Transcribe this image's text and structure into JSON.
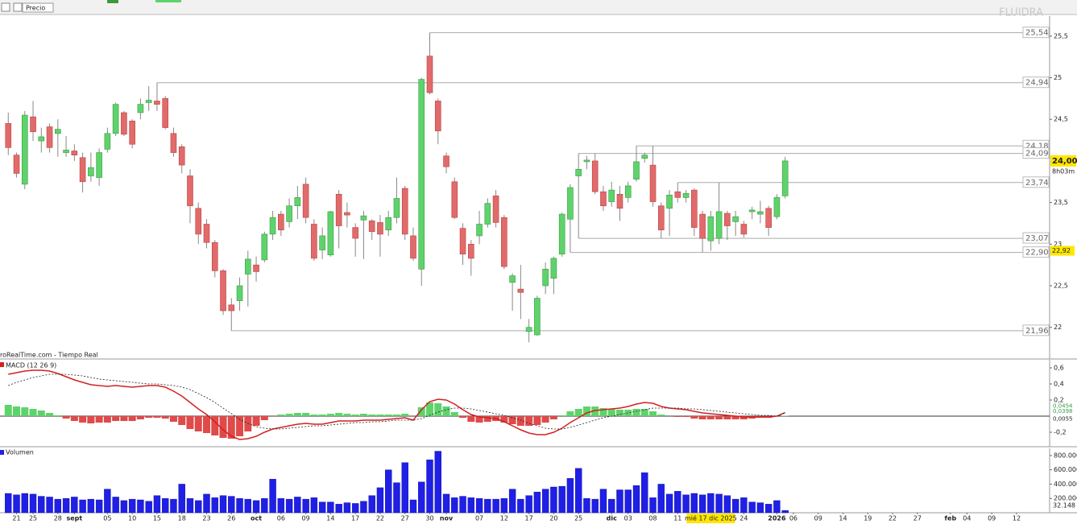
{
  "toolbar": {
    "tab": "Precio"
  },
  "chart_data": [
    {
      "type": "candlestick",
      "watermark": "FLUIDRA",
      "source": "roRealTime.com - Tiempo Real",
      "up_color": "#5fd36b",
      "down_color": "#e26a6a",
      "xlim": [
        -1,
        126
      ],
      "ylim": [
        21.62,
        25.74
      ],
      "yticks": [
        {
          "value": 25.5,
          "label": "25,5"
        },
        25,
        {
          "value": 24.5,
          "label": "24,5"
        },
        {
          "value": 23.5,
          "label": "23,5"
        },
        23,
        {
          "value": 22.5,
          "label": "22,5"
        },
        22
      ],
      "open": [
        24.45,
        24.07,
        23.72,
        24.53,
        24.24,
        24.41,
        24.33,
        24.1,
        24.12,
        24.04,
        23.82,
        23.8,
        24.14,
        24.33,
        24.58,
        24.48,
        24.58,
        24.7,
        24.72,
        24.75,
        24.33,
        24.17,
        23.82,
        23.43,
        23.24,
        23.02,
        22.68,
        22.27,
        22.32,
        22.64,
        22.75,
        22.81,
        23.12,
        23.36,
        23.27,
        23.46,
        23.72,
        23.24,
        22.93,
        22.87,
        23.6,
        23.38,
        23.2,
        23.29,
        23.28,
        23.26,
        23.17,
        23.32,
        23.67,
        23.1,
        22.7,
        25.26,
        24.72,
        24.06,
        23.75,
        23.19,
        23.0,
        23.1,
        23.24,
        23.58,
        23.32,
        22.54,
        22.46,
        21.95,
        21.91,
        22.5,
        22.59,
        22.88,
        23.3,
        23.82,
        23.99,
        24.0,
        23.63,
        23.51,
        23.6,
        23.56,
        23.78,
        24.03,
        23.95,
        23.46,
        23.43,
        23.63,
        23.56,
        23.65,
        23.36,
        23.04,
        23.07,
        23.37,
        23.27,
        23.24,
        23.39,
        23.36,
        23.43,
        23.33,
        23.58
      ],
      "high": [
        24.58,
        24.1,
        24.6,
        24.72,
        24.4,
        24.45,
        24.5,
        24.3,
        24.2,
        24.1,
        24.1,
        24.15,
        24.4,
        24.7,
        24.6,
        24.5,
        24.75,
        24.9,
        24.94,
        24.78,
        24.4,
        24.2,
        23.9,
        23.5,
        23.3,
        23.05,
        22.7,
        22.35,
        22.6,
        22.92,
        22.85,
        23.15,
        23.4,
        23.4,
        23.55,
        23.7,
        23.8,
        23.3,
        23.2,
        23.4,
        23.65,
        23.5,
        23.25,
        23.4,
        23.3,
        23.35,
        23.4,
        23.8,
        23.7,
        23.2,
        25.0,
        25.54,
        24.75,
        24.1,
        23.8,
        23.25,
        23.05,
        23.4,
        23.55,
        23.65,
        23.35,
        22.65,
        22.75,
        22.1,
        22.38,
        22.78,
        22.85,
        23.38,
        23.72,
        24.09,
        24.06,
        24.09,
        23.7,
        23.75,
        23.7,
        23.75,
        24.18,
        24.1,
        24.18,
        23.5,
        23.65,
        23.74,
        23.65,
        23.67,
        23.4,
        23.4,
        23.74,
        23.4,
        23.4,
        23.28,
        23.45,
        23.52,
        23.46,
        23.6,
        24.05
      ],
      "low": [
        24.07,
        23.8,
        23.66,
        24.24,
        24.1,
        24.1,
        24.05,
        24.05,
        24.0,
        23.62,
        23.75,
        23.7,
        24.1,
        24.3,
        24.3,
        24.15,
        24.5,
        24.6,
        24.6,
        24.38,
        24.05,
        23.85,
        23.25,
        23.0,
        22.95,
        22.6,
        22.15,
        21.96,
        22.2,
        22.25,
        22.55,
        22.78,
        23.05,
        23.1,
        23.2,
        23.3,
        23.25,
        22.8,
        22.82,
        22.85,
        22.95,
        23.2,
        22.85,
        22.82,
        23.05,
        22.85,
        23.1,
        23.25,
        23.05,
        22.8,
        22.5,
        24.8,
        24.2,
        23.85,
        23.3,
        22.75,
        22.62,
        23.0,
        23.2,
        23.2,
        22.7,
        22.2,
        22.1,
        21.82,
        21.9,
        22.4,
        22.4,
        22.85,
        22.9,
        23.07,
        23.9,
        23.6,
        23.4,
        23.45,
        23.28,
        23.5,
        23.75,
        23.98,
        23.45,
        23.07,
        23.1,
        23.5,
        23.5,
        23.1,
        22.9,
        22.92,
        23.0,
        23.05,
        23.1,
        23.08,
        23.3,
        23.25,
        23.1,
        23.3,
        23.55
      ],
      "close": [
        24.16,
        23.85,
        24.55,
        24.35,
        24.29,
        24.16,
        24.38,
        24.13,
        24.07,
        23.75,
        23.92,
        24.1,
        24.33,
        24.68,
        24.32,
        24.2,
        24.68,
        24.73,
        24.68,
        24.4,
        24.1,
        23.95,
        23.46,
        23.12,
        23.02,
        22.68,
        22.2,
        22.2,
        22.5,
        22.82,
        22.67,
        23.12,
        23.32,
        23.17,
        23.46,
        23.56,
        23.32,
        22.83,
        23.1,
        23.39,
        23.22,
        23.35,
        23.07,
        23.34,
        23.15,
        23.12,
        23.32,
        23.55,
        23.12,
        22.83,
        24.98,
        24.82,
        24.36,
        23.93,
        23.32,
        22.88,
        22.83,
        23.24,
        23.49,
        23.26,
        22.73,
        22.62,
        22.42,
        22.0,
        22.35,
        22.7,
        22.83,
        23.36,
        23.68,
        23.9,
        24.01,
        23.63,
        23.46,
        23.65,
        23.43,
        23.7,
        23.99,
        24.07,
        23.51,
        23.17,
        23.59,
        23.56,
        23.61,
        23.2,
        23.07,
        23.33,
        23.39,
        23.22,
        23.33,
        23.12,
        23.41,
        23.39,
        23.2,
        23.56,
        24.0
      ],
      "last_label": "24,00",
      "countdown": "8h03m",
      "y_cursor": {
        "value": 22.92,
        "label": "22,92"
      },
      "levels": [
        {
          "value": 25.54,
          "label": "25,54"
        },
        {
          "value": 24.94,
          "label": "24,94"
        },
        {
          "value": 24.18,
          "label": "24,18"
        },
        {
          "value": 24.09,
          "label": "24,09"
        },
        {
          "value": 23.74,
          "label": "23,74"
        },
        {
          "value": 23.07,
          "label": "23,07"
        },
        {
          "value": 22.9,
          "label": "22,90"
        },
        {
          "value": 21.96,
          "label": "21,96"
        }
      ]
    },
    {
      "type": "macd",
      "title": "MACD (12 26 9)",
      "xlim": [
        -1,
        126
      ],
      "ylim": [
        -0.38,
        0.7
      ],
      "yticks": [
        {
          "value": 0.6,
          "label": "0,6"
        },
        {
          "value": 0.4,
          "label": "0,4"
        },
        {
          "value": 0.2,
          "label": "0,2"
        },
        {
          "value": -0.2,
          "label": "-0,2"
        }
      ],
      "series": [
        {
          "style": "bar",
          "color": "#5fd36b",
          "negative_color": "#e04a4a",
          "last_label": "0,0055",
          "values": [
            0.14,
            0.12,
            0.11,
            0.09,
            0.07,
            0.04,
            0.01,
            -0.03,
            -0.06,
            -0.08,
            -0.09,
            -0.08,
            -0.08,
            -0.06,
            -0.06,
            -0.06,
            -0.04,
            -0.02,
            -0.02,
            -0.03,
            -0.07,
            -0.11,
            -0.16,
            -0.19,
            -0.21,
            -0.24,
            -0.27,
            -0.28,
            -0.25,
            -0.19,
            -0.12,
            -0.05,
            0.0,
            0.02,
            0.03,
            0.04,
            0.04,
            0.02,
            0.02,
            0.03,
            0.04,
            0.03,
            0.02,
            0.03,
            0.02,
            0.02,
            0.02,
            0.02,
            0.03,
            0.0,
            0.11,
            0.17,
            0.16,
            0.12,
            0.05,
            -0.02,
            -0.07,
            -0.08,
            -0.07,
            -0.06,
            -0.08,
            -0.1,
            -0.12,
            -0.12,
            -0.11,
            -0.08,
            -0.04,
            0.01,
            0.06,
            0.09,
            0.12,
            0.12,
            0.1,
            0.09,
            0.08,
            0.08,
            0.09,
            0.09,
            0.06,
            0.02,
            0.0,
            -0.01,
            -0.01,
            -0.03,
            -0.04,
            -0.04,
            -0.04,
            -0.04,
            -0.04,
            -0.04,
            -0.03,
            -0.02,
            -0.02,
            0.0,
            0.0055
          ]
        },
        {
          "style": "line",
          "color": "#d42020",
          "last_label": "0,0454",
          "values": [
            0.52,
            0.54,
            0.56,
            0.57,
            0.57,
            0.56,
            0.53,
            0.49,
            0.45,
            0.42,
            0.39,
            0.38,
            0.37,
            0.38,
            0.37,
            0.36,
            0.37,
            0.38,
            0.38,
            0.36,
            0.31,
            0.25,
            0.17,
            0.09,
            0.02,
            -0.07,
            -0.17,
            -0.25,
            -0.29,
            -0.28,
            -0.25,
            -0.2,
            -0.16,
            -0.14,
            -0.12,
            -0.1,
            -0.09,
            -0.1,
            -0.1,
            -0.08,
            -0.06,
            -0.06,
            -0.06,
            -0.05,
            -0.05,
            -0.05,
            -0.04,
            -0.03,
            -0.02,
            -0.05,
            0.08,
            0.18,
            0.21,
            0.2,
            0.15,
            0.08,
            0.02,
            -0.01,
            -0.02,
            -0.03,
            -0.07,
            -0.12,
            -0.17,
            -0.21,
            -0.23,
            -0.23,
            -0.2,
            -0.15,
            -0.08,
            -0.02,
            0.04,
            0.07,
            0.08,
            0.09,
            0.1,
            0.12,
            0.15,
            0.17,
            0.16,
            0.12,
            0.1,
            0.09,
            0.08,
            0.06,
            0.04,
            0.03,
            0.02,
            0.01,
            0.0,
            -0.01,
            -0.01,
            -0.01,
            -0.01,
            0.0,
            0.0454
          ]
        },
        {
          "style": "dashed",
          "color": "#222222",
          "last_label": "0,0398",
          "values": [
            0.38,
            0.42,
            0.45,
            0.48,
            0.5,
            0.52,
            0.52,
            0.52,
            0.51,
            0.5,
            0.48,
            0.46,
            0.45,
            0.44,
            0.43,
            0.42,
            0.41,
            0.4,
            0.4,
            0.39,
            0.38,
            0.36,
            0.33,
            0.28,
            0.23,
            0.17,
            0.1,
            0.03,
            -0.04,
            -0.09,
            -0.13,
            -0.15,
            -0.16,
            -0.16,
            -0.15,
            -0.14,
            -0.13,
            -0.12,
            -0.12,
            -0.11,
            -0.1,
            -0.09,
            -0.08,
            -0.08,
            -0.07,
            -0.07,
            -0.06,
            -0.05,
            -0.05,
            -0.05,
            -0.03,
            0.01,
            0.05,
            0.08,
            0.1,
            0.1,
            0.09,
            0.07,
            0.05,
            0.03,
            0.01,
            -0.02,
            -0.05,
            -0.09,
            -0.12,
            -0.15,
            -0.16,
            -0.16,
            -0.14,
            -0.11,
            -0.08,
            -0.05,
            -0.02,
            0.0,
            0.02,
            0.04,
            0.06,
            0.08,
            0.1,
            0.1,
            0.1,
            0.1,
            0.09,
            0.09,
            0.08,
            0.07,
            0.06,
            0.05,
            0.04,
            0.03,
            0.02,
            0.01,
            0.01,
            0.0,
            0.0398
          ]
        }
      ]
    },
    {
      "type": "bar",
      "title": "Volumen",
      "color": "#1f1fe6",
      "xlim": [
        -1,
        126
      ],
      "ylim": [
        0,
        900000
      ],
      "yticks": [
        {
          "value": 800000,
          "label": "800.000"
        },
        {
          "value": 600000,
          "label": "600.000"
        },
        {
          "value": 400000,
          "label": "400.000"
        },
        {
          "value": 200000,
          "label": "200.000"
        }
      ],
      "last_label": "32.148",
      "values": [
        270000,
        250000,
        270000,
        260000,
        230000,
        220000,
        190000,
        200000,
        220000,
        180000,
        190000,
        180000,
        330000,
        220000,
        170000,
        190000,
        180000,
        160000,
        240000,
        200000,
        190000,
        400000,
        200000,
        170000,
        260000,
        210000,
        240000,
        230000,
        200000,
        190000,
        170000,
        200000,
        470000,
        200000,
        190000,
        220000,
        190000,
        210000,
        150000,
        150000,
        120000,
        140000,
        130000,
        160000,
        240000,
        350000,
        600000,
        420000,
        700000,
        180000,
        430000,
        740000,
        860000,
        260000,
        210000,
        230000,
        210000,
        200000,
        190000,
        190000,
        200000,
        330000,
        190000,
        240000,
        290000,
        330000,
        360000,
        370000,
        480000,
        620000,
        200000,
        190000,
        330000,
        190000,
        320000,
        320000,
        380000,
        560000,
        210000,
        400000,
        260000,
        300000,
        250000,
        270000,
        250000,
        270000,
        260000,
        240000,
        190000,
        210000,
        150000,
        140000,
        120000,
        170000,
        32148
      ],
      "x_cursor": {
        "value": 85,
        "label": "mié 17 dic 2025"
      },
      "xticks": [
        {
          "value": 1,
          "label": "21"
        },
        {
          "value": 3,
          "label": "25"
        },
        {
          "value": 6,
          "label": "28"
        },
        {
          "value": 8,
          "label": "sept"
        },
        {
          "value": 12,
          "label": "05"
        },
        {
          "value": 15,
          "label": "10"
        },
        {
          "value": 18,
          "label": "15"
        },
        {
          "value": 21,
          "label": "18"
        },
        {
          "value": 24,
          "label": "23"
        },
        {
          "value": 27,
          "label": "26"
        },
        {
          "value": 30,
          "label": "oct"
        },
        {
          "value": 33,
          "label": "06"
        },
        {
          "value": 36,
          "label": "09"
        },
        {
          "value": 39,
          "label": "14"
        },
        {
          "value": 42,
          "label": "17"
        },
        {
          "value": 45,
          "label": "22"
        },
        {
          "value": 48,
          "label": "27"
        },
        {
          "value": 51,
          "label": "30"
        },
        {
          "value": 53,
          "label": "nov"
        },
        {
          "value": 57,
          "label": "07"
        },
        {
          "value": 60,
          "label": "12"
        },
        {
          "value": 63,
          "label": "17"
        },
        {
          "value": 66,
          "label": "20"
        },
        {
          "value": 69,
          "label": "25"
        },
        {
          "value": 73,
          "label": "dic"
        },
        {
          "value": 75,
          "label": "03"
        },
        {
          "value": 78,
          "label": "08"
        },
        {
          "value": 81,
          "label": "11"
        },
        {
          "value": 89,
          "label": "24"
        },
        {
          "value": 93,
          "label": "2026"
        },
        {
          "value": 95,
          "label": "06"
        },
        {
          "value": 98,
          "label": "09"
        },
        {
          "value": 101,
          "label": "14"
        },
        {
          "value": 104,
          "label": "19"
        },
        {
          "value": 107,
          "label": "22"
        },
        {
          "value": 110,
          "label": "27"
        },
        {
          "value": 114,
          "label": "feb"
        },
        {
          "value": 116,
          "label": "04"
        },
        {
          "value": 119,
          "label": "09"
        },
        {
          "value": 122,
          "label": "12"
        }
      ]
    }
  ]
}
